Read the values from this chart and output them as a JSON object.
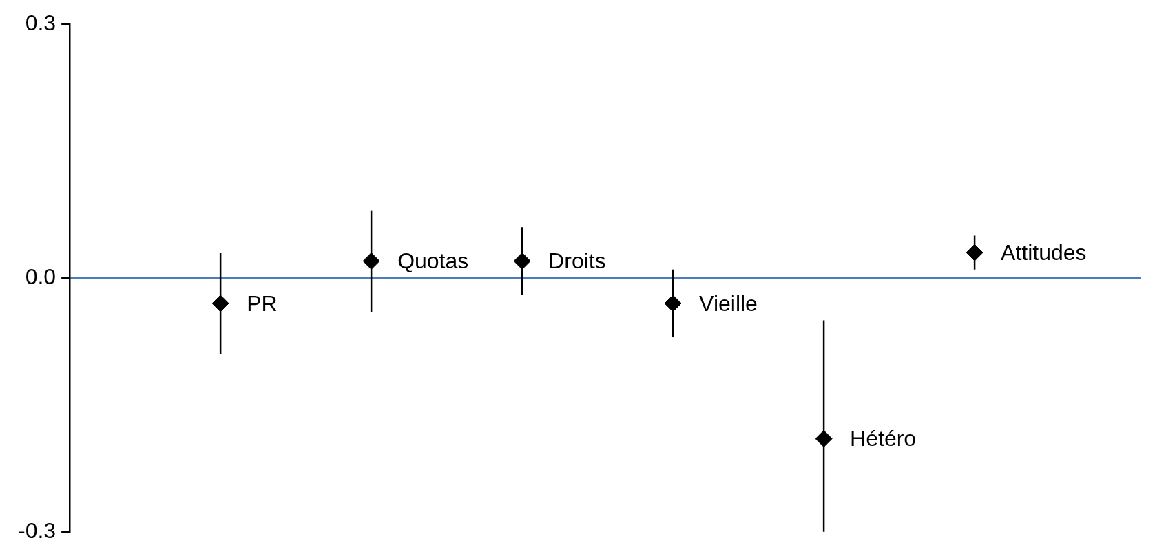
{
  "chart_data": {
    "type": "scatter",
    "categories": [
      "PR",
      "Quotas",
      "Droits",
      "Vieille",
      "Hétéro",
      "Attitudes"
    ],
    "values": [
      -0.03,
      0.02,
      0.02,
      -0.03,
      -0.19,
      0.03
    ],
    "errors": [
      [
        -0.09,
        0.03
      ],
      [
        -0.04,
        0.08
      ],
      [
        -0.02,
        0.06
      ],
      [
        -0.07,
        0.01
      ],
      [
        -0.3,
        -0.05
      ],
      [
        0.01,
        0.05
      ]
    ],
    "color": "#000000",
    "marker": "diamond",
    "ylim": [
      -0.3,
      0.3
    ],
    "yticks": [
      0.3,
      {
        "value": 0,
        "label": "0.0"
      },
      -0.3
    ],
    "tick_labels": "y"
  }
}
